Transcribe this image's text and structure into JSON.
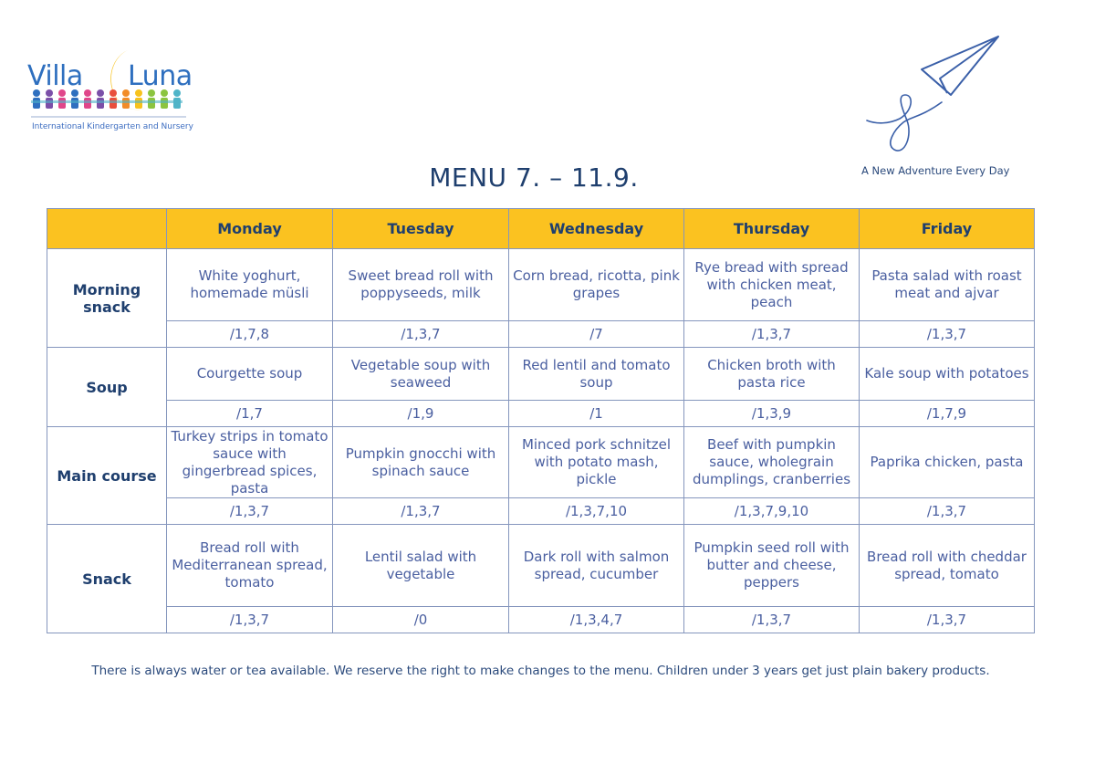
{
  "logo": {
    "word1": "Villa",
    "word2": "Luna",
    "tagline": "International Kindergarten and Nursery"
  },
  "slogan": "A New Adventure Every Day",
  "title": "MENU 7. – 11.9.",
  "days": [
    "Monday",
    "Tuesday",
    "Wednesday",
    "Thursday",
    "Friday"
  ],
  "rows": [
    {
      "label": "Morning snack",
      "dishes": [
        "White yoghurt, homemade müsli",
        "Sweet bread roll with poppyseeds, milk",
        "Corn bread, ricotta, pink grapes",
        "Rye bread with spread with chicken meat, peach",
        "Pasta salad with roast meat and ajvar"
      ],
      "allergens": [
        "/1,7,8",
        "/1,3,7",
        "/7",
        "/1,3,7",
        "/1,3,7"
      ]
    },
    {
      "label": "Soup",
      "dishes": [
        "Courgette soup",
        "Vegetable soup with seaweed",
        "Red lentil and tomato soup",
        "Chicken broth with pasta rice",
        "Kale soup with potatoes"
      ],
      "allergens": [
        "/1,7",
        "/1,9",
        "/1",
        "/1,3,9",
        "/1,7,9"
      ]
    },
    {
      "label": "Main course",
      "dishes": [
        "Turkey strips in tomato sauce with gingerbread spices, pasta",
        "Pumpkin gnocchi with spinach sauce",
        "Minced pork schnitzel with potato mash, pickle",
        "Beef with pumpkin sauce, wholegrain dumplings, cranberries",
        "Paprika chicken, pasta"
      ],
      "allergens": [
        "/1,3,7",
        "/1,3,7",
        "/1,3,7,10",
        "/1,3,7,9,10",
        "/1,3,7"
      ]
    },
    {
      "label": "Snack",
      "dishes": [
        "Bread roll with Mediterranean spread, tomato",
        "Lentil salad with vegetable",
        "Dark roll with salmon spread, cucumber",
        "Pumpkin seed roll with butter and cheese, peppers",
        "Bread roll with cheddar spread, tomato"
      ],
      "allergens": [
        "/1,3,7",
        "/0",
        "/1,3,4,7",
        "/1,3,7",
        "/1,3,7"
      ]
    }
  ],
  "footer": "There is always water or tea available. We reserve the right to make changes to the menu. Children under 3 years get just plain bakery products.",
  "colors": {
    "header_bg": "#fbc220",
    "title": "#1f3f6e",
    "text": "#4a5fa0",
    "border": "#8596bd",
    "logo_blue": "#3b6cc0",
    "logo_moon": "#f7c21c"
  }
}
